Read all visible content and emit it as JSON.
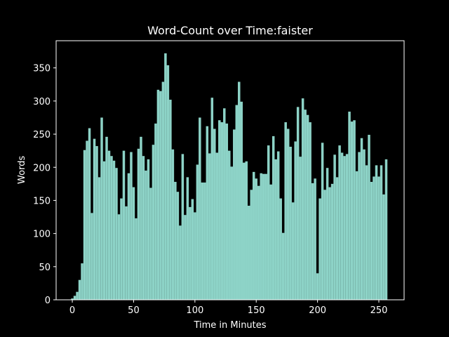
{
  "chart_data": {
    "type": "bar",
    "title": "Word-Count over Time:faister",
    "x_label": "Time in Minutes",
    "y_label": "Words",
    "color": "#8dd3c7",
    "x": [
      0,
      2,
      4,
      6,
      8,
      10,
      12,
      14,
      16,
      18,
      20,
      22,
      24,
      26,
      28,
      30,
      32,
      34,
      36,
      38,
      40,
      42,
      44,
      46,
      48,
      50,
      52,
      54,
      56,
      58,
      60,
      62,
      64,
      66,
      68,
      70,
      72,
      74,
      76,
      78,
      80,
      82,
      84,
      86,
      88,
      90,
      92,
      94,
      96,
      98,
      100,
      102,
      104,
      106,
      108,
      110,
      112,
      114,
      116,
      118,
      120,
      122,
      124,
      126,
      128,
      130,
      132,
      134,
      136,
      138,
      140,
      142,
      144,
      146,
      148,
      150,
      152,
      154,
      156,
      158,
      160,
      162,
      164,
      166,
      168,
      170,
      172,
      174,
      176,
      178,
      180,
      182,
      184,
      186,
      188,
      190,
      192,
      194,
      196,
      198,
      200,
      202,
      204,
      206,
      208,
      210,
      212,
      214,
      216,
      218,
      220,
      222,
      224,
      226,
      228,
      230,
      232,
      234,
      236,
      238,
      240,
      242,
      244,
      246,
      248,
      250,
      252,
      254,
      256
    ],
    "values": [
      2,
      6,
      12,
      30,
      55,
      226,
      240,
      259,
      131,
      243,
      232,
      185,
      275,
      209,
      246,
      225,
      217,
      210,
      199,
      129,
      153,
      225,
      141,
      191,
      223,
      170,
      123,
      228,
      246,
      217,
      195,
      212,
      169,
      234,
      266,
      317,
      315,
      329,
      372,
      354,
      302,
      227,
      178,
      163,
      112,
      220,
      128,
      185,
      140,
      152,
      132,
      204,
      275,
      177,
      177,
      262,
      221,
      305,
      258,
      222,
      271,
      268,
      289,
      266,
      225,
      201,
      257,
      294,
      329,
      299,
      207,
      209,
      142,
      166,
      193,
      183,
      172,
      191,
      190,
      190,
      233,
      174,
      247,
      212,
      224,
      153,
      101,
      268,
      258,
      231,
      147,
      239,
      291,
      216,
      304,
      287,
      279,
      268,
      176,
      183,
      40,
      153,
      237,
      166,
      199,
      170,
      175,
      219,
      185,
      233,
      222,
      217,
      220,
      284,
      269,
      271,
      194,
      223,
      244,
      227,
      203,
      249,
      178,
      186,
      203,
      186,
      203,
      159,
      212
    ],
    "xlim": [
      -13.2,
      270.6
    ],
    "ylim": [
      0,
      391
    ],
    "xticks": [
      0,
      50,
      100,
      150,
      200,
      250
    ],
    "yticks": [
      0,
      50,
      100,
      150,
      200,
      250,
      300,
      350
    ]
  }
}
